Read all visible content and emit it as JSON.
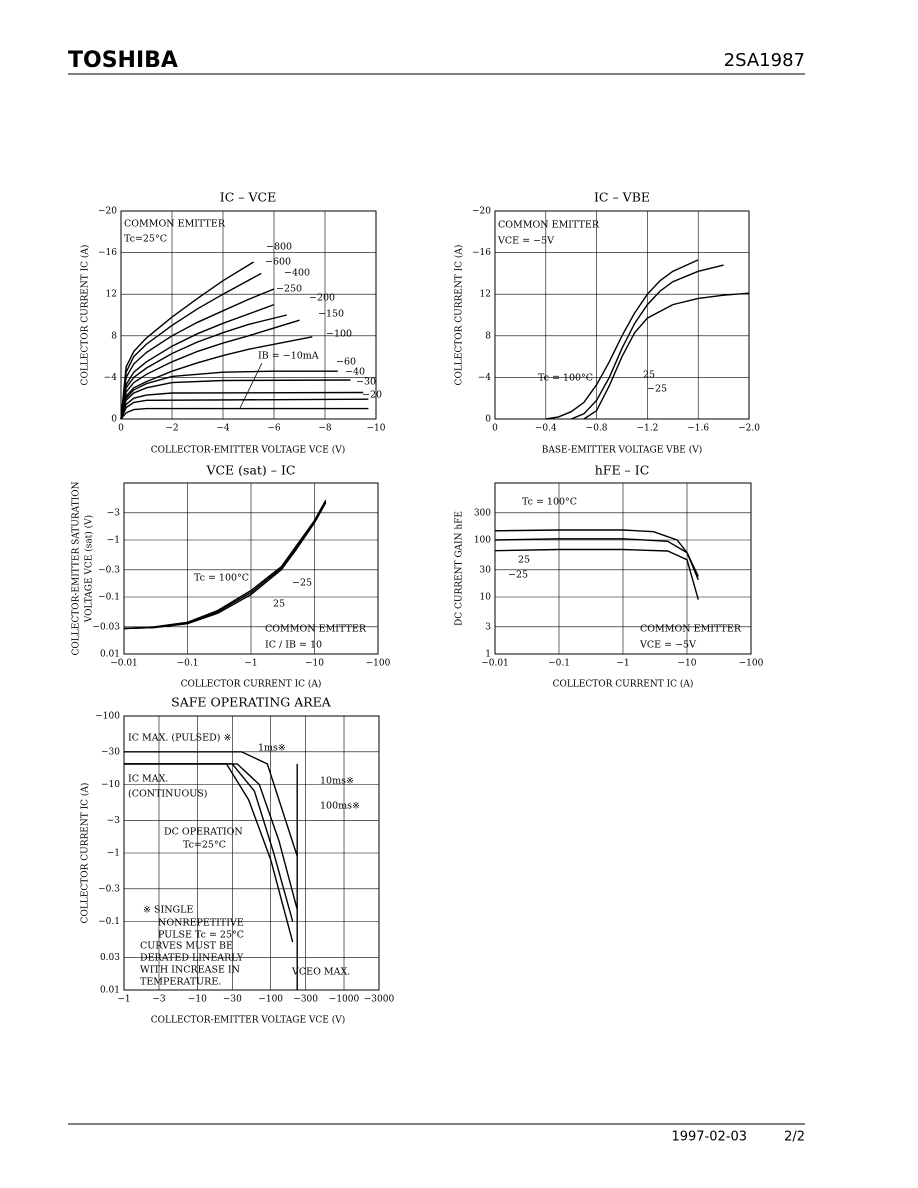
{
  "header": {
    "logo": "TOSHIBA",
    "part": "2SA1987"
  },
  "footer": {
    "date": "1997-02-03",
    "page": "2/2"
  },
  "chart_data": [
    {
      "type": "line",
      "title": "IC – VCE",
      "xlabel": "COLLECTOR-EMITTER VOLTAGE  VCE  (V)",
      "ylabel": [
        "COLLECTOR CURRENT  IC  (A)"
      ],
      "xlim": [
        0,
        -10
      ],
      "ylim": [
        0,
        -20
      ],
      "xticks": [
        0,
        {
          "value": -2,
          "label": "−2"
        },
        {
          "value": -4,
          "label": "−4"
        },
        {
          "value": -6,
          "label": "−6"
        },
        {
          "value": -8,
          "label": "−8"
        },
        {
          "value": -10,
          "label": "−10"
        }
      ],
      "yticks": [
        0,
        {
          "value": -4,
          "label": "−4"
        },
        {
          "value": -8,
          "label": "8"
        },
        {
          "value": -12,
          "label": "12"
        },
        {
          "value": -16,
          "label": "−16"
        },
        {
          "value": -20,
          "label": "−20"
        }
      ],
      "grid": true,
      "annotations": [
        "COMMON EMITTER",
        "Tc=25°C"
      ],
      "series": [
        {
          "name": "−800",
          "color": "#000000",
          "x": [
            0,
            -0.2,
            -0.5,
            -1,
            -2,
            -3,
            -4,
            -5.2
          ],
          "values": [
            0,
            -5,
            -6.5,
            -7.8,
            -9.8,
            -11.6,
            -13.3,
            -15.1
          ]
        },
        {
          "name": "−600",
          "color": "#000000",
          "x": [
            0,
            -0.2,
            -0.5,
            -1,
            -2,
            -3,
            -4,
            -5.5
          ],
          "values": [
            0,
            -4.5,
            -6,
            -7.2,
            -9,
            -10.6,
            -12,
            -14
          ]
        },
        {
          "name": "−400",
          "color": "#000000",
          "x": [
            0,
            -0.2,
            -0.5,
            -1,
            -2,
            -3,
            -4,
            -5,
            -6
          ],
          "values": [
            0,
            -4,
            -5.3,
            -6.4,
            -8,
            -9.3,
            -10.4,
            -11.5,
            -12.5
          ]
        },
        {
          "name": "−250",
          "color": "#000000",
          "x": [
            0,
            -0.2,
            -0.5,
            -1,
            -2,
            -3,
            -4,
            -5,
            -6
          ],
          "values": [
            0,
            -3.3,
            -4.5,
            -5.5,
            -7,
            -8.2,
            -9.2,
            -10.1,
            -11
          ]
        },
        {
          "name": "−200",
          "color": "#000000",
          "x": [
            0,
            -0.2,
            -0.5,
            -1,
            -2,
            -3,
            -4,
            -5,
            -6.5
          ],
          "values": [
            0,
            -3,
            -4,
            -4.9,
            -6.3,
            -7.4,
            -8.3,
            -9.1,
            -10
          ]
        },
        {
          "name": "−150",
          "color": "#000000",
          "x": [
            0,
            -0.2,
            -0.5,
            -1,
            -2,
            -3,
            -4,
            -5,
            -7
          ],
          "values": [
            0,
            -2.6,
            -3.5,
            -4.3,
            -5.5,
            -6.5,
            -7.3,
            -8,
            -9.5
          ]
        },
        {
          "name": "−100",
          "color": "#000000",
          "x": [
            0,
            -0.2,
            -0.5,
            -1,
            -2,
            -3,
            -4,
            -5,
            -7.5
          ],
          "values": [
            0,
            -2.2,
            -3,
            -3.6,
            -4.6,
            -5.4,
            -6.1,
            -6.7,
            -7.9
          ]
        },
        {
          "name": "−60",
          "color": "#000000",
          "x": [
            0,
            -0.2,
            -0.5,
            -1,
            -2,
            -4,
            -6,
            -8.5
          ],
          "values": [
            0,
            -2,
            -2.8,
            -3.4,
            -4.1,
            -4.5,
            -4.6,
            -4.6
          ]
        },
        {
          "name": "−40",
          "color": "#000000",
          "x": [
            0,
            -0.2,
            -0.5,
            -1,
            -2,
            -4,
            -9
          ],
          "values": [
            0,
            -1.8,
            -2.5,
            -3,
            -3.5,
            -3.7,
            -3.75
          ]
        },
        {
          "name": "−30",
          "color": "#000000",
          "x": [
            0,
            -0.2,
            -0.5,
            -1,
            -2,
            -9.5
          ],
          "values": [
            0,
            -1.4,
            -2,
            -2.3,
            -2.5,
            -2.55
          ]
        },
        {
          "name": "−20",
          "color": "#000000",
          "x": [
            0,
            -0.2,
            -0.5,
            -1,
            -9.7
          ],
          "values": [
            0,
            -1.1,
            -1.6,
            -1.8,
            -1.9
          ]
        },
        {
          "name": "IB = −10mA",
          "color": "#000000",
          "x": [
            0,
            -0.2,
            -0.5,
            -1,
            -9.7
          ],
          "values": [
            0,
            -0.6,
            -0.9,
            -1,
            -1
          ]
        }
      ]
    },
    {
      "type": "line",
      "title": "IC – VBE",
      "xlabel": "BASE-EMITTER VOLTAGE  VBE  (V)",
      "ylabel": [
        "COLLECTOR CURRENT  IC  (A)"
      ],
      "xlim": [
        0,
        -2
      ],
      "ylim": [
        0,
        -20
      ],
      "xticks": [
        0,
        {
          "value": -0.4,
          "label": "−0.4"
        },
        {
          "value": -0.8,
          "label": "−0.8"
        },
        {
          "value": -1.2,
          "label": "−1.2"
        },
        {
          "value": -1.6,
          "label": "−1.6"
        },
        {
          "value": -2,
          "label": "−2.0"
        }
      ],
      "yticks": [
        0,
        {
          "value": -4,
          "label": "−4"
        },
        {
          "value": -8,
          "label": "8"
        },
        {
          "value": -12,
          "label": "12"
        },
        {
          "value": -16,
          "label": "−16"
        },
        {
          "value": -20,
          "label": "−20"
        }
      ],
      "grid": true,
      "annotations": [
        "COMMON EMITTER",
        "VCE = −5V"
      ],
      "series": [
        {
          "name": "Tc = 100°C",
          "color": "#000000",
          "x": [
            -0.4,
            -0.5,
            -0.6,
            -0.7,
            -0.8,
            -0.9,
            -1,
            -1.1,
            -1.2,
            -1.3,
            -1.4,
            -1.6
          ],
          "values": [
            0,
            -0.2,
            -0.7,
            -1.6,
            -3.3,
            -5.5,
            -8,
            -10.2,
            -12,
            -13.3,
            -14.2,
            -15.3
          ]
        },
        {
          "name": "25",
          "color": "#000000",
          "x": [
            -0.6,
            -0.7,
            -0.8,
            -0.9,
            -1,
            -1.1,
            -1.2,
            -1.3,
            -1.4,
            -1.6,
            -1.8
          ],
          "values": [
            0,
            -0.5,
            -1.8,
            -4,
            -6.8,
            -9.2,
            -11,
            -12.3,
            -13.2,
            -14.2,
            -14.8
          ]
        },
        {
          "name": "−25",
          "color": "#000000",
          "x": [
            -0.7,
            -0.8,
            -0.9,
            -1,
            -1.1,
            -1.2,
            -1.4,
            -1.6,
            -1.8,
            -2
          ],
          "values": [
            0,
            -0.8,
            -3.2,
            -6,
            -8.3,
            -9.7,
            -11,
            -11.6,
            -11.9,
            -12.1
          ]
        }
      ]
    },
    {
      "type": "line",
      "title": "VCE (sat) – IC",
      "xlabel": "COLLECTOR CURRENT  IC  (A)",
      "ylabel": [
        "COLLECTOR-EMITTER SATURATION",
        "VOLTAGE  VCE (sat)  (V)"
      ],
      "xscale": "log",
      "yscale": "log",
      "xlim": [
        -0.01,
        -100
      ],
      "ylim": [
        -0.01,
        -10
      ],
      "xticks": [
        {
          "value": -0.01,
          "label": "−0.01"
        },
        {
          "value": -0.1,
          "label": "−0.1"
        },
        {
          "value": -1,
          "label": "−1"
        },
        {
          "value": -10,
          "label": "−10"
        },
        {
          "value": -100,
          "label": "−100"
        }
      ],
      "yticks": [
        {
          "value": -0.01,
          "label": "0.01"
        },
        {
          "value": -0.03,
          "label": "−0.03"
        },
        {
          "value": -0.1,
          "label": "−0.1"
        },
        {
          "value": -0.3,
          "label": "−0.3"
        },
        {
          "value": -1,
          "label": "−1"
        },
        {
          "value": -3,
          "label": "−3"
        }
      ],
      "grid": true,
      "annotations": [
        "COMMON EMITTER",
        "IC / IB = 10"
      ],
      "series": [
        {
          "name": "Tc = 100°C",
          "color": "#000000",
          "x": [
            -0.01,
            -0.03,
            -0.1,
            -0.3,
            -1,
            -3,
            -5,
            -10,
            -15
          ],
          "values": [
            -0.028,
            -0.029,
            -0.034,
            -0.052,
            -0.11,
            -0.3,
            -0.65,
            -2,
            -4.5
          ]
        },
        {
          "name": "−25",
          "color": "#000000",
          "x": [
            -0.01,
            -0.03,
            -0.1,
            -0.3,
            -1,
            -3,
            -5,
            -10,
            -15
          ],
          "values": [
            -0.028,
            -0.03,
            -0.036,
            -0.058,
            -0.13,
            -0.34,
            -0.75,
            -2.2,
            -5
          ]
        },
        {
          "name": "25",
          "color": "#000000",
          "x": [
            -0.01,
            -0.03,
            -0.1,
            -0.3,
            -1,
            -3,
            -5,
            -10,
            -15
          ],
          "values": [
            -0.028,
            -0.029,
            -0.035,
            -0.055,
            -0.12,
            -0.32,
            -0.7,
            -2.1,
            -4.7
          ]
        }
      ]
    },
    {
      "type": "line",
      "title": "hFE – IC",
      "xlabel": "COLLECTOR CURRENT  IC  (A)",
      "ylabel": [
        "DC CURRENT GAIN  hFE"
      ],
      "xscale": "log",
      "yscale": "log",
      "xlim": [
        -0.01,
        -100
      ],
      "ylim": [
        1,
        1000
      ],
      "xticks": [
        {
          "value": -0.01,
          "label": "−0.01"
        },
        {
          "value": -0.1,
          "label": "−0.1"
        },
        {
          "value": -1,
          "label": "−1"
        },
        {
          "value": -10,
          "label": "−10"
        },
        {
          "value": -100,
          "label": "−100"
        }
      ],
      "yticks": [
        1,
        3,
        10,
        30,
        100,
        300
      ],
      "grid": true,
      "annotations": [
        "COMMON EMITTER",
        "VCE = −5V"
      ],
      "series": [
        {
          "name": "Tc = 100°C",
          "color": "#000000",
          "x": [
            -0.01,
            -0.1,
            -1,
            -3,
            -7,
            -10,
            -15
          ],
          "values": [
            145,
            150,
            150,
            140,
            100,
            60,
            20
          ]
        },
        {
          "name": "25",
          "color": "#000000",
          "x": [
            -0.01,
            -0.1,
            -1,
            -5,
            -10,
            -15
          ],
          "values": [
            100,
            105,
            105,
            95,
            60,
            23
          ]
        },
        {
          "name": "−25",
          "color": "#000000",
          "x": [
            -0.01,
            -0.1,
            -1,
            -5,
            -10,
            -15
          ],
          "values": [
            65,
            68,
            68,
            64,
            45,
            9
          ]
        }
      ]
    },
    {
      "type": "line",
      "title": "SAFE OPERATING AREA",
      "xlabel": "COLLECTOR-EMITTER VOLTAGE  VCE  (V)",
      "ylabel": [
        "COLLECTOR CURRENT  IC  (A)"
      ],
      "xscale": "log",
      "yscale": "log",
      "xlim": [
        -1,
        -3000
      ],
      "ylim": [
        -0.01,
        -100
      ],
      "xticks": [
        {
          "value": -1,
          "label": "−1"
        },
        {
          "value": -3,
          "label": "−3"
        },
        {
          "value": -10,
          "label": "−10"
        },
        {
          "value": -30,
          "label": "−30"
        },
        {
          "value": -100,
          "label": "−100"
        },
        {
          "value": -300,
          "label": "−300"
        },
        {
          "value": -1000,
          "label": "−1000"
        },
        {
          "value": -3000,
          "label": "−3000"
        }
      ],
      "yticks": [
        {
          "value": -0.01,
          "label": "0.01"
        },
        {
          "value": -0.03,
          "label": "0.03"
        },
        {
          "value": -0.1,
          "label": "−0.1"
        },
        {
          "value": -0.3,
          "label": "−0.3"
        },
        {
          "value": -1,
          "label": "−1"
        },
        {
          "value": -3,
          "label": "−3"
        },
        {
          "value": -10,
          "label": "−10"
        },
        {
          "value": -30,
          "label": "−30"
        },
        {
          "value": -100,
          "label": "−100"
        }
      ],
      "grid": true,
      "annotations": [
        "IC MAX. (PULSED) ※",
        "IC MAX.",
        "(CONTINUOUS)",
        "Tc=25°C",
        "※  SINGLE",
        "NONREPETITIVE",
        "PULSE Tc = 25°C",
        "CURVES MUST BE",
        "DERATED LINEARLY",
        "WITH INCREASE IN",
        "TEMPERATURE."
      ],
      "series": [
        {
          "name": "1ms※",
          "color": "#000000",
          "x": [
            -1,
            -40,
            -90,
            -230
          ],
          "values": [
            -30,
            -30,
            -20,
            -0.9
          ]
        },
        {
          "name": "10ms※",
          "color": "#000000",
          "x": [
            -1,
            -35,
            -70,
            -130,
            -230
          ],
          "values": [
            -20,
            -20,
            -10,
            -1.5,
            -0.15
          ]
        },
        {
          "name": "100ms※",
          "color": "#000000",
          "x": [
            -1,
            -30,
            -60,
            -110,
            -200
          ],
          "values": [
            -20,
            -20,
            -8,
            -1,
            -0.1
          ]
        },
        {
          "name": "DC OPERATION",
          "color": "#000000",
          "x": [
            -1,
            -25,
            -50,
            -100,
            -200
          ],
          "values": [
            -20,
            -20,
            -6,
            -0.8,
            -0.05
          ]
        },
        {
          "name": "VCEO MAX.",
          "color": "#000000",
          "x": [
            -230,
            -230
          ],
          "values": [
            -20,
            -0.01
          ]
        }
      ]
    }
  ]
}
